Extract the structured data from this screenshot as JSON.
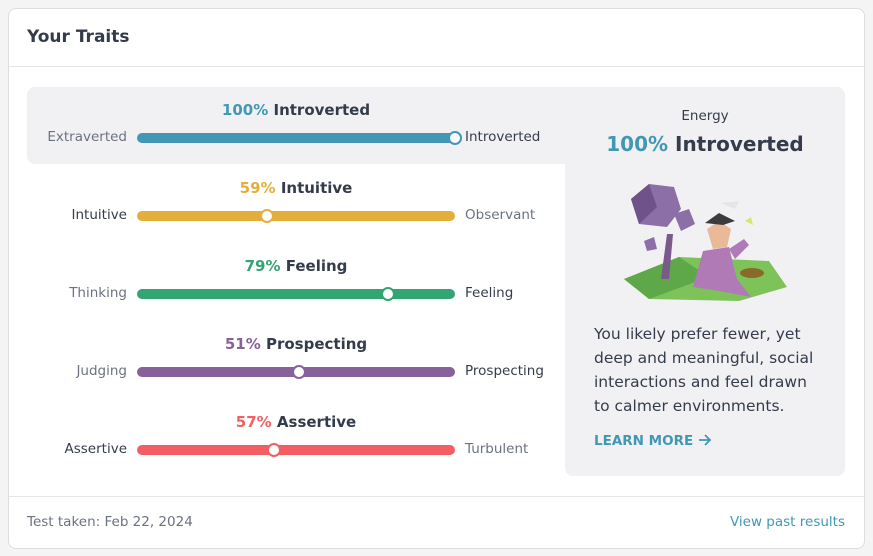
{
  "header": {
    "title": "Your Traits"
  },
  "traits": [
    {
      "percent": {
        "value": 100,
        "label": "100%"
      },
      "trait": "Introverted",
      "left": "Extraverted",
      "right": "Introverted",
      "color": "#4298b4",
      "selected": true
    },
    {
      "percent": {
        "value": 59,
        "label": "59%"
      },
      "trait": "Intuitive",
      "left": "Intuitive",
      "right": "Observant",
      "color": "#e4ae3a",
      "selected": false
    },
    {
      "percent": {
        "value": 79,
        "label": "79%"
      },
      "trait": "Feeling",
      "left": "Thinking",
      "right": "Feeling",
      "color": "#33a474",
      "selected": false
    },
    {
      "percent": {
        "value": 51,
        "label": "51%"
      },
      "trait": "Prospecting",
      "left": "Judging",
      "right": "Prospecting",
      "color": "#88619a",
      "selected": false
    },
    {
      "percent": {
        "value": 57,
        "label": "57%"
      },
      "trait": "Assertive",
      "left": "Assertive",
      "right": "Turbulent",
      "color": "#f25e62",
      "selected": false
    }
  ],
  "detail": {
    "aspect": "Energy",
    "percent": "100%",
    "trait": "Introverted",
    "description": "You likely prefer fewer, yet deep and meaningful, social interactions and feel drawn to calmer environments.",
    "link": "LEARN MORE"
  },
  "footer": {
    "date": "Test taken: Feb 22, 2024",
    "link": "View past results"
  }
}
